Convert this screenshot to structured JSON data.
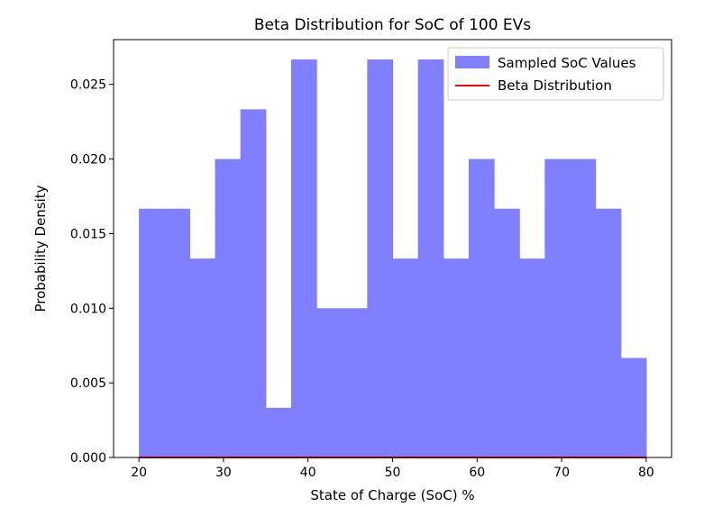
{
  "chart_data": {
    "type": "bar",
    "title": "Beta Distribution for SoC of 100 EVs",
    "xlabel": "State of Charge (SoC) %",
    "ylabel": "Probability Density",
    "xlim": [
      17,
      83
    ],
    "ylim": [
      0,
      0.028
    ],
    "xticks": [
      20,
      30,
      40,
      50,
      60,
      70,
      80
    ],
    "yticks": [
      0.0,
      0.005,
      0.01,
      0.015,
      0.02,
      0.025
    ],
    "ytick_labels": [
      "0.000",
      "0.005",
      "0.010",
      "0.015",
      "0.020",
      "0.025"
    ],
    "bin_edges": [
      20,
      23,
      26,
      29,
      32,
      35,
      38,
      41,
      44,
      47,
      50,
      53,
      56,
      59,
      62,
      65,
      68,
      71,
      74,
      77,
      80
    ],
    "histogram_values": [
      0.01667,
      0.01667,
      0.01333,
      0.02,
      0.02333,
      0.00333,
      0.02667,
      0.01,
      0.01,
      0.02667,
      0.01333,
      0.02667,
      0.01333,
      0.02,
      0.01667,
      0.01333,
      0.02,
      0.02,
      0.01667,
      0.00667
    ],
    "line_series": {
      "name": "Beta Distribution",
      "x": [
        20,
        80
      ],
      "y": [
        0.0,
        0.0
      ]
    },
    "legend": {
      "placement": "top-right",
      "entries": [
        "Sampled SoC Values",
        "Beta Distribution"
      ]
    },
    "colors": {
      "histogram": "#8080ff",
      "line": "#ff0000"
    },
    "grid": false
  }
}
